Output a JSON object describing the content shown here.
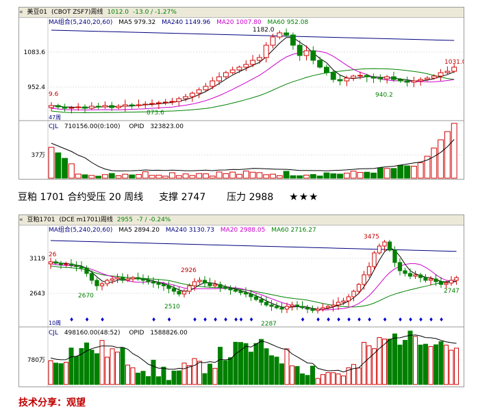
{
  "chart1": {
    "toolbar": {
      "chevron": "«",
      "symbol": "美豆01",
      "description": "(CBOT ZSF7)周线",
      "last": "1012.0",
      "change": "-13.0 / -1.27%"
    },
    "ma_legend": [
      {
        "label": "MA组合(5,240,20,60)",
        "color": "#000080"
      },
      {
        "label": "MA5 979.32",
        "color": "#000000"
      },
      {
        "label": "MA240 1149.96",
        "color": "#000080"
      },
      {
        "label": "MA20 1007.80",
        "color": "#cc00cc"
      },
      {
        "label": "MA60 952.08",
        "color": "#008000"
      }
    ],
    "price_axis": [
      "1083.6",
      "952.4"
    ],
    "annotations": {
      "high": "1182.0",
      "last": "1031.0",
      "low1": "873.6",
      "low2": "940.2",
      "left": "9.6",
      "period_label": "47周"
    },
    "volume_header": [
      {
        "label": "CJL",
        "color": "#000080"
      },
      {
        "label": "710156.00(0:100)",
        "color": "#000000"
      },
      {
        "label": "OPID",
        "color": "#000000"
      },
      {
        "label": "323823.00",
        "color": "#000000"
      }
    ],
    "volume_axis": "37万"
  },
  "headline": {
    "title": "豆粕 1701 合约受压 20 周线",
    "support": "支撑 2747",
    "pressure": "压力 2988",
    "stars": "★★★"
  },
  "chart2": {
    "toolbar": {
      "chevron": "«",
      "symbol": "豆粕1701",
      "description": "(DCE m1701)周线",
      "last": "2955",
      "change": "-7 / -0.24%"
    },
    "ma_legend": [
      {
        "label": "MA组合(5,240,20,60)",
        "color": "#000080"
      },
      {
        "label": "MA5 2894.20",
        "color": "#000000"
      },
      {
        "label": "MA240 3130.73",
        "color": "#000080"
      },
      {
        "label": "MA20 2988.05",
        "color": "#cc00cc"
      },
      {
        "label": "MA60 2716.27",
        "color": "#008000"
      }
    ],
    "price_axis": [
      "3119",
      "2643"
    ],
    "annotations": {
      "high": "3475",
      "left": "26",
      "low1": "2670",
      "low2": "2510",
      "peak_mid": "2926",
      "low3": "2287",
      "right": "2747",
      "period_label": "10周"
    },
    "volume_header": [
      {
        "label": "CJL",
        "color": "#000080"
      },
      {
        "label": "498160.00(48:52)",
        "color": "#000000"
      },
      {
        "label": "OPID",
        "color": "#000000"
      },
      {
        "label": "1588826.00",
        "color": "#000000"
      }
    ],
    "volume_axis": "780万"
  },
  "footer": {
    "text": "技术分享：观望"
  },
  "colors": {
    "up": "#d00000",
    "down": "#008000",
    "ma5": "#000000",
    "ma20": "#cc00cc",
    "ma60": "#008000",
    "ma240": "#000080",
    "marker": "#0000cc"
  }
}
